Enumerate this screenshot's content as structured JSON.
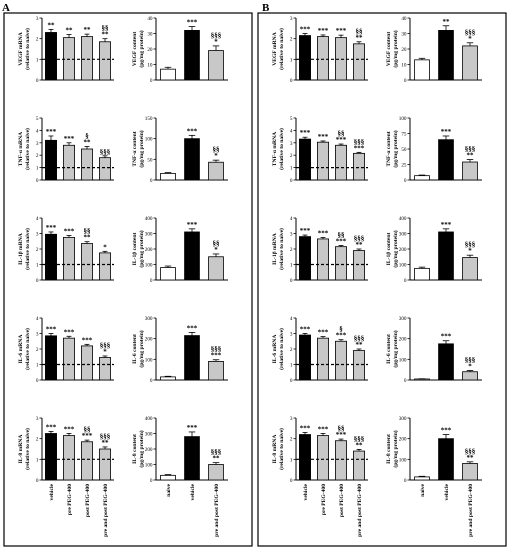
{
  "panels": [
    {
      "letter": "A"
    },
    {
      "letter": "B"
    }
  ],
  "bar_colors": {
    "black": "#000000",
    "gray": "#c8c8c8",
    "white": "#ffffff"
  },
  "x_labels": {
    "mrna": [
      "vehicle",
      "pre PEG-400",
      "post PEG-400",
      "pre and post PEG-400"
    ],
    "content": [
      "naive",
      "vehicle",
      "pre and post PEG-400"
    ]
  },
  "chart_data": [
    {
      "panel": "A",
      "type": "bar",
      "ylabel": [
        "VEGF mRNA",
        "(relative to naive)"
      ],
      "ylim": [
        0,
        3
      ],
      "yticks": [
        "0",
        "1",
        "2",
        "3"
      ],
      "baseline": 1,
      "categories": [
        "vehicle",
        "pre PEG-400",
        "post PEG-400",
        "pre and post PEG-400"
      ],
      "colors": [
        "black",
        "gray",
        "gray",
        "gray"
      ],
      "values": [
        2.3,
        2.05,
        2.1,
        1.85
      ],
      "errors": [
        0.15,
        0.15,
        0.12,
        0.15
      ],
      "annotations": [
        [
          "**"
        ],
        [
          "**"
        ],
        [
          "**"
        ],
        [
          "§§",
          "**"
        ]
      ]
    },
    {
      "panel": "A",
      "type": "bar",
      "ylabel": [
        "VEGF content",
        "(pg/mg protein)"
      ],
      "ylim": [
        0,
        40
      ],
      "yticks": [
        "0",
        "10",
        "20",
        "30",
        "40"
      ],
      "categories": [
        "naive",
        "vehicle",
        "pre and post PEG-400"
      ],
      "colors": [
        "white",
        "black",
        "gray"
      ],
      "values": [
        7,
        32,
        19
      ],
      "errors": [
        1.2,
        2.5,
        3
      ],
      "annotations": [
        [],
        [
          "***"
        ],
        [
          "§§§",
          "*"
        ]
      ]
    },
    {
      "panel": "A",
      "type": "bar",
      "ylabel": [
        "TNF-α mRNA",
        "(relative to naive)"
      ],
      "ylim": [
        0,
        5
      ],
      "yticks": [
        "0",
        "1",
        "2",
        "3",
        "4",
        "5"
      ],
      "baseline": 1,
      "categories": [
        "vehicle",
        "pre PEG-400",
        "post PEG-400",
        "pre and post PEG-400"
      ],
      "colors": [
        "black",
        "gray",
        "gray",
        "gray"
      ],
      "values": [
        3.2,
        2.8,
        2.5,
        1.8
      ],
      "errors": [
        0.35,
        0.2,
        0.2,
        0.15
      ],
      "annotations": [
        [
          "***"
        ],
        [
          "***"
        ],
        [
          "§",
          "**"
        ],
        [
          "§§§"
        ]
      ]
    },
    {
      "panel": "A",
      "type": "bar",
      "ylabel": [
        "TNF-α content",
        "(pg/mg protein)"
      ],
      "ylim": [
        0,
        150
      ],
      "yticks": [
        "0",
        "50",
        "100",
        "150"
      ],
      "categories": [
        "naive",
        "vehicle",
        "pre and post PEG-400"
      ],
      "colors": [
        "white",
        "black",
        "gray"
      ],
      "values": [
        16,
        100,
        43
      ],
      "errors": [
        2,
        8,
        5
      ],
      "annotations": [
        [],
        [
          "***"
        ],
        [
          "§§",
          "*"
        ]
      ]
    },
    {
      "panel": "A",
      "type": "bar",
      "ylabel": [
        "IL-1β mRNA",
        "(relative to naive)"
      ],
      "ylim": [
        0,
        4
      ],
      "yticks": [
        "0",
        "1",
        "2",
        "3",
        "4"
      ],
      "baseline": 1,
      "categories": [
        "vehicle",
        "pre PEG-400",
        "post PEG-400",
        "pre and post PEG-400"
      ],
      "colors": [
        "black",
        "gray",
        "gray",
        "gray"
      ],
      "values": [
        2.95,
        2.75,
        2.35,
        1.75
      ],
      "errors": [
        0.15,
        0.12,
        0.12,
        0.1
      ],
      "annotations": [
        [
          "***"
        ],
        [
          "***"
        ],
        [
          "§§",
          "**"
        ],
        [
          "*"
        ]
      ]
    },
    {
      "panel": "A",
      "type": "bar",
      "ylabel": [
        "IL-1β content",
        "(pg/mg protein)"
      ],
      "ylim": [
        0,
        400
      ],
      "yticks": [
        "0",
        "100",
        "200",
        "300",
        "400"
      ],
      "categories": [
        "naive",
        "vehicle",
        "pre and post PEG-400"
      ],
      "colors": [
        "white",
        "black",
        "gray"
      ],
      "values": [
        80,
        310,
        150
      ],
      "errors": [
        10,
        20,
        18
      ],
      "annotations": [
        [],
        [
          "***"
        ],
        [
          "§§",
          "*"
        ]
      ]
    },
    {
      "panel": "A",
      "type": "bar",
      "ylabel": [
        "IL-6 mRNA",
        "(relative to naive)"
      ],
      "ylim": [
        0,
        4
      ],
      "yticks": [
        "0",
        "1",
        "2",
        "3",
        "4"
      ],
      "baseline": 1,
      "categories": [
        "vehicle",
        "pre PEG-400",
        "post PEG-400",
        "pre and post PEG-400"
      ],
      "colors": [
        "black",
        "gray",
        "gray",
        "gray"
      ],
      "values": [
        2.85,
        2.7,
        2.2,
        1.45
      ],
      "errors": [
        0.15,
        0.12,
        0.1,
        0.1
      ],
      "annotations": [
        [
          "***"
        ],
        [
          "***"
        ],
        [
          "***"
        ],
        [
          "§§§",
          "*"
        ]
      ]
    },
    {
      "panel": "A",
      "type": "bar",
      "ylabel": [
        "IL-6 content",
        "(pg/mg protein)"
      ],
      "ylim": [
        0,
        300
      ],
      "yticks": [
        "0",
        "100",
        "200",
        "300"
      ],
      "categories": [
        "naive",
        "vehicle",
        "pre and post PEG-400"
      ],
      "colors": [
        "white",
        "black",
        "gray"
      ],
      "values": [
        15,
        215,
        90
      ],
      "errors": [
        3,
        15,
        8
      ],
      "annotations": [
        [],
        [
          "***"
        ],
        [
          "§§§",
          "***"
        ]
      ]
    },
    {
      "panel": "A",
      "type": "bar",
      "ylabel": [
        "IL-8 mRNA",
        "(relative to naive)"
      ],
      "ylim": [
        0,
        3
      ],
      "yticks": [
        "0",
        "1",
        "2",
        "3"
      ],
      "baseline": 1,
      "categories": [
        "vehicle",
        "pre PEG-400",
        "post PEG-400",
        "pre and post PEG-400"
      ],
      "colors": [
        "black",
        "gray",
        "gray",
        "gray"
      ],
      "values": [
        2.25,
        2.15,
        1.85,
        1.5
      ],
      "errors": [
        0.1,
        0.1,
        0.08,
        0.1
      ],
      "annotations": [
        [
          "***"
        ],
        [
          "***"
        ],
        [
          "§§",
          "***"
        ],
        [
          "§§§",
          "**"
        ]
      ]
    },
    {
      "panel": "A",
      "type": "bar",
      "ylabel": [
        "IL-8 content",
        "(pg/mg protein)"
      ],
      "ylim": [
        0,
        400
      ],
      "yticks": [
        "0",
        "100",
        "200",
        "300",
        "400"
      ],
      "categories": [
        "naive",
        "vehicle",
        "pre and post PEG-400"
      ],
      "colors": [
        "white",
        "black",
        "gray"
      ],
      "values": [
        30,
        280,
        100
      ],
      "errors": [
        5,
        30,
        12
      ],
      "annotations": [
        [],
        [
          "***"
        ],
        [
          "§§§",
          "**"
        ]
      ]
    },
    {
      "panel": "B",
      "type": "bar",
      "ylabel": [
        "VEGF mRNA",
        "(relative to naive)"
      ],
      "ylim": [
        0,
        3
      ],
      "yticks": [
        "0",
        "1",
        "2",
        "3"
      ],
      "baseline": 1,
      "categories": [
        "vehicle",
        "pre PEG-400",
        "post PEG-400",
        "pre and post PEG-400"
      ],
      "colors": [
        "black",
        "gray",
        "gray",
        "gray"
      ],
      "values": [
        2.15,
        2.1,
        2.05,
        1.75
      ],
      "errors": [
        0.1,
        0.08,
        0.12,
        0.1
      ],
      "annotations": [
        [
          "***"
        ],
        [
          "***"
        ],
        [
          "***"
        ],
        [
          "§§",
          "**"
        ]
      ]
    },
    {
      "panel": "B",
      "type": "bar",
      "ylabel": [
        "VEGF content",
        "(pg/mg protein)"
      ],
      "ylim": [
        0,
        40
      ],
      "yticks": [
        "0",
        "10",
        "20",
        "30",
        "40"
      ],
      "categories": [
        "naive",
        "vehicle",
        "pre and post PEG-400"
      ],
      "colors": [
        "white",
        "black",
        "gray"
      ],
      "values": [
        13,
        32,
        22
      ],
      "errors": [
        1,
        3,
        2
      ],
      "annotations": [
        [],
        [
          "**"
        ],
        [
          "§§§",
          "*"
        ]
      ]
    },
    {
      "panel": "B",
      "type": "bar",
      "ylabel": [
        "TNF-α mRNA",
        "(relative to naive)"
      ],
      "ylim": [
        0,
        5
      ],
      "yticks": [
        "0",
        "1",
        "2",
        "3",
        "4",
        "5"
      ],
      "baseline": 1,
      "categories": [
        "vehicle",
        "pre PEG-400",
        "post PEG-400",
        "pre and post PEG-400"
      ],
      "colors": [
        "black",
        "gray",
        "gray",
        "gray"
      ],
      "values": [
        3.3,
        3.05,
        2.8,
        2.15
      ],
      "errors": [
        0.15,
        0.1,
        0.1,
        0.08
      ],
      "annotations": [
        [
          "***"
        ],
        [
          "***"
        ],
        [
          "§§",
          "***"
        ],
        [
          "§§§",
          "***"
        ]
      ]
    },
    {
      "panel": "B",
      "type": "bar",
      "ylabel": [
        "TNF-α content",
        "(pg/mg protein)"
      ],
      "ylim": [
        0,
        100
      ],
      "yticks": [
        "0",
        "25",
        "50",
        "75",
        "100"
      ],
      "categories": [
        "naive",
        "vehicle",
        "pre and post PEG-400"
      ],
      "colors": [
        "white",
        "black",
        "gray"
      ],
      "values": [
        7,
        65,
        29
      ],
      "errors": [
        1,
        6,
        4
      ],
      "annotations": [
        [],
        [
          "***"
        ],
        [
          "§§§",
          "**"
        ]
      ]
    },
    {
      "panel": "B",
      "type": "bar",
      "ylabel": [
        "IL-1β mRNA",
        "(relative to naive)"
      ],
      "ylim": [
        0,
        4
      ],
      "yticks": [
        "0",
        "1",
        "2",
        "3",
        "4"
      ],
      "baseline": 1,
      "categories": [
        "vehicle",
        "pre PEG-400",
        "post PEG-400",
        "pre and post PEG-400"
      ],
      "colors": [
        "black",
        "gray",
        "gray",
        "gray"
      ],
      "values": [
        2.8,
        2.65,
        2.15,
        1.9
      ],
      "errors": [
        0.1,
        0.1,
        0.08,
        0.1
      ],
      "annotations": [
        [
          "***"
        ],
        [
          "***"
        ],
        [
          "§§",
          "***"
        ],
        [
          "§§§",
          "**"
        ]
      ]
    },
    {
      "panel": "B",
      "type": "bar",
      "ylabel": [
        "IL-1β content",
        "(pg/mg protein)"
      ],
      "ylim": [
        0,
        400
      ],
      "yticks": [
        "0",
        "100",
        "200",
        "300",
        "400"
      ],
      "categories": [
        "naive",
        "vehicle",
        "pre and post PEG-400"
      ],
      "colors": [
        "white",
        "black",
        "gray"
      ],
      "values": [
        75,
        310,
        145
      ],
      "errors": [
        8,
        20,
        15
      ],
      "annotations": [
        [],
        [
          "***"
        ],
        [
          "§§§",
          "*"
        ]
      ]
    },
    {
      "panel": "B",
      "type": "bar",
      "ylabel": [
        "IL-6 mRNA",
        "(relative to naive)"
      ],
      "ylim": [
        0,
        4
      ],
      "yticks": [
        "0",
        "1",
        "2",
        "3",
        "4"
      ],
      "baseline": 1,
      "categories": [
        "vehicle",
        "pre PEG-400",
        "post PEG-400",
        "pre and post PEG-400"
      ],
      "colors": [
        "black",
        "gray",
        "gray",
        "gray"
      ],
      "values": [
        2.9,
        2.7,
        2.5,
        1.9
      ],
      "errors": [
        0.1,
        0.1,
        0.1,
        0.1
      ],
      "annotations": [
        [
          "***"
        ],
        [
          "***"
        ],
        [
          "§",
          "***"
        ],
        [
          "§§§",
          "**"
        ]
      ]
    },
    {
      "panel": "B",
      "type": "bar",
      "ylabel": [
        "IL-6 content",
        "(pg/mg protein)"
      ],
      "ylim": [
        0,
        300
      ],
      "yticks": [
        "0",
        "100",
        "200",
        "300"
      ],
      "categories": [
        "naive",
        "vehicle",
        "pre and post PEG-400"
      ],
      "colors": [
        "white",
        "black",
        "gray"
      ],
      "values": [
        5,
        175,
        40
      ],
      "errors": [
        1,
        15,
        6
      ],
      "annotations": [
        [],
        [
          "***"
        ],
        [
          "§§§",
          "*"
        ]
      ]
    },
    {
      "panel": "B",
      "type": "bar",
      "ylabel": [
        "IL-8 mRNA",
        "(relative to naive)"
      ],
      "ylim": [
        0,
        3
      ],
      "yticks": [
        "0",
        "1",
        "2",
        "3"
      ],
      "baseline": 1,
      "categories": [
        "vehicle",
        "pre PEG-400",
        "post PEG-400",
        "pre and post PEG-400"
      ],
      "colors": [
        "black",
        "gray",
        "gray",
        "gray"
      ],
      "values": [
        2.2,
        2.15,
        1.9,
        1.4
      ],
      "errors": [
        0.1,
        0.1,
        0.08,
        0.08
      ],
      "annotations": [
        [
          "***"
        ],
        [
          "***"
        ],
        [
          "§§",
          "***"
        ],
        [
          "§§§",
          "**"
        ]
      ]
    },
    {
      "panel": "B",
      "type": "bar",
      "ylabel": [
        "IL-8 content",
        "(pg/mg protein)"
      ],
      "ylim": [
        0,
        300
      ],
      "yticks": [
        "0",
        "100",
        "200",
        "300"
      ],
      "categories": [
        "naive",
        "vehicle",
        "pre and post PEG-400"
      ],
      "colors": [
        "white",
        "black",
        "gray"
      ],
      "values": [
        15,
        200,
        80
      ],
      "errors": [
        3,
        20,
        8
      ],
      "annotations": [
        [],
        [
          "***"
        ],
        [
          "§§§",
          "**"
        ]
      ]
    }
  ]
}
